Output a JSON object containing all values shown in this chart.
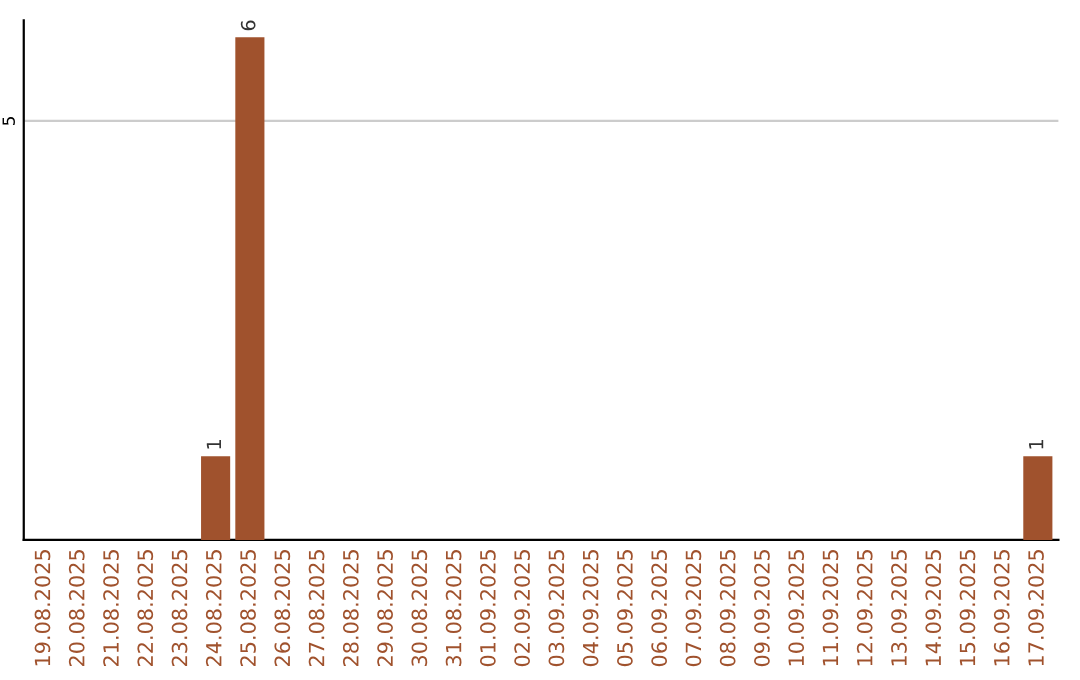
{
  "chart_data": {
    "type": "bar",
    "categories": [
      "19.08.2025",
      "20.08.2025",
      "21.08.2025",
      "22.08.2025",
      "23.08.2025",
      "24.08.2025",
      "25.08.2025",
      "26.08.2025",
      "27.08.2025",
      "28.08.2025",
      "29.08.2025",
      "30.08.2025",
      "31.08.2025",
      "01.09.2025",
      "02.09.2025",
      "03.09.2025",
      "04.09.2025",
      "05.09.2025",
      "06.09.2025",
      "07.09.2025",
      "08.09.2025",
      "09.09.2025",
      "10.09.2025",
      "11.09.2025",
      "12.09.2025",
      "13.09.2025",
      "14.09.2025",
      "15.09.2025",
      "16.09.2025",
      "17.09.2025"
    ],
    "values": [
      0,
      0,
      0,
      0,
      0,
      1,
      6,
      0,
      0,
      0,
      0,
      0,
      0,
      0,
      0,
      0,
      0,
      0,
      0,
      0,
      0,
      0,
      0,
      0,
      0,
      0,
      0,
      0,
      0,
      1
    ],
    "value_labels": [
      null,
      null,
      null,
      null,
      null,
      "1",
      "6",
      null,
      null,
      null,
      null,
      null,
      null,
      null,
      null,
      null,
      null,
      null,
      null,
      null,
      null,
      null,
      null,
      null,
      null,
      null,
      null,
      null,
      null,
      "1"
    ],
    "color": "#a0522d",
    "ylim": [
      0,
      6.2
    ],
    "yticks": [
      5
    ],
    "grid": "y"
  }
}
